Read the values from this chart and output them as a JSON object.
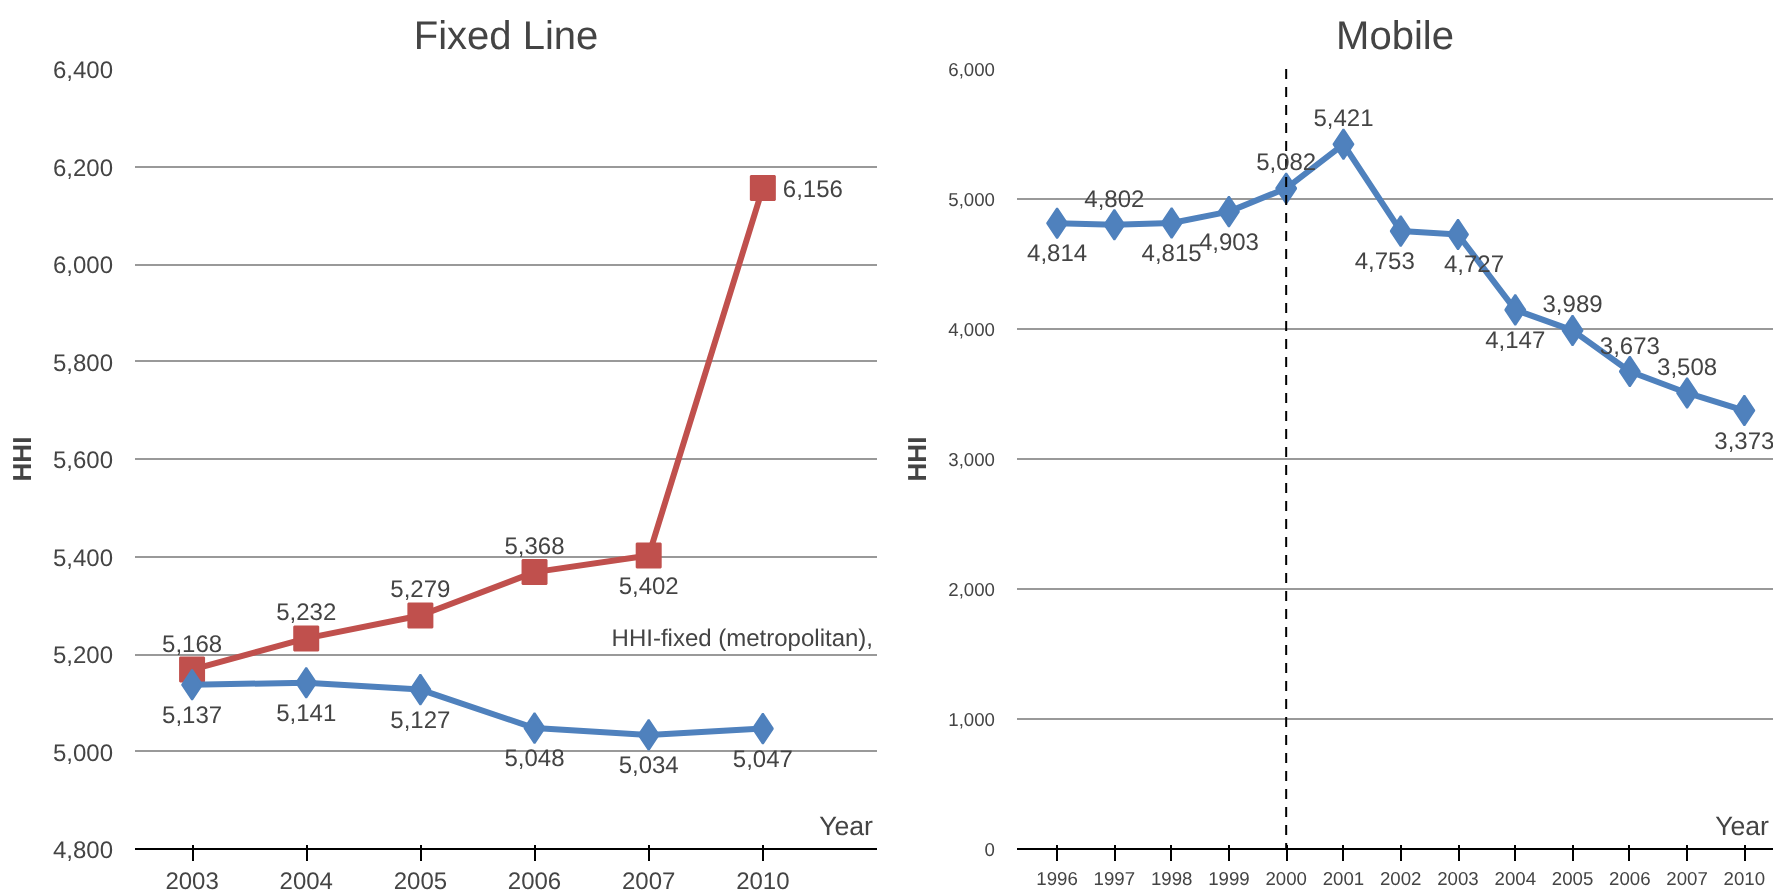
{
  "chart_data": [
    {
      "type": "line",
      "title": "Fixed Line",
      "xlabel": "Year",
      "ylabel": "HHI",
      "categories": [
        "2003",
        "2004",
        "2005",
        "2006",
        "2007",
        "2010"
      ],
      "series": [
        {
          "color": "#c0504d",
          "marker": "square",
          "values": [
            5168,
            5232,
            5279,
            5368,
            5402,
            6156
          ],
          "value_labels": [
            "5,168",
            "5,232",
            "5,279",
            "5,368",
            "5,402",
            "6,156"
          ]
        },
        {
          "color": "#4f81bd",
          "marker": "diamond",
          "values": [
            5137,
            5141,
            5127,
            5048,
            5034,
            5047
          ],
          "value_labels": [
            "5,137",
            "5,141",
            "5,127",
            "5,048",
            "5,034",
            "5,047"
          ]
        }
      ],
      "ylim": [
        4800,
        6400
      ],
      "yticks": [
        {
          "value": 4800,
          "label": "4,800"
        },
        {
          "value": 5000,
          "label": "5,000"
        },
        {
          "value": 5200,
          "label": "5,200"
        },
        {
          "value": 5400,
          "label": "5,400"
        },
        {
          "value": 5600,
          "label": "5,600"
        },
        {
          "value": 5800,
          "label": "5,800"
        },
        {
          "value": 6000,
          "label": "6,000"
        },
        {
          "value": 6200,
          "label": "6,200"
        },
        {
          "value": 6400,
          "label": "6,400"
        }
      ],
      "annotations": [
        "HHI-fixed (metropolitan),"
      ],
      "grid": "y"
    },
    {
      "type": "line",
      "title": "Mobile",
      "xlabel": "Year",
      "ylabel": "HHI",
      "categories": [
        "1996",
        "1997",
        "1998",
        "1999",
        "2000",
        "2001",
        "2002",
        "2003",
        "2004",
        "2005",
        "2006",
        "2007",
        "2010"
      ],
      "series": [
        {
          "color": "#4f81bd",
          "marker": "diamond",
          "values": [
            4814,
            4802,
            4815,
            4903,
            5082,
            5421,
            4753,
            4727,
            4147,
            3989,
            3673,
            3508,
            3373
          ],
          "value_labels": [
            "4,814",
            "4,802",
            "4,815",
            "4,903",
            "5,082",
            "5,421",
            "4,753",
            "4,727",
            "4,147",
            "3,989",
            "3,673",
            "3,508",
            "3,373"
          ]
        }
      ],
      "ylim": [
        0,
        6000
      ],
      "yticks": [
        0,
        {
          "value": 1000,
          "label": "1,000"
        },
        {
          "value": 2000,
          "label": "2,000"
        },
        {
          "value": 3000,
          "label": "3,000"
        },
        {
          "value": 4000,
          "label": "4,000"
        },
        {
          "value": 5000,
          "label": "5,000"
        },
        {
          "value": 6000,
          "label": "6,000"
        }
      ],
      "ref_lines": [
        {
          "axis": "x",
          "value": "2000",
          "line_style": "dashed",
          "color": "#000000"
        }
      ],
      "grid": "y"
    }
  ]
}
